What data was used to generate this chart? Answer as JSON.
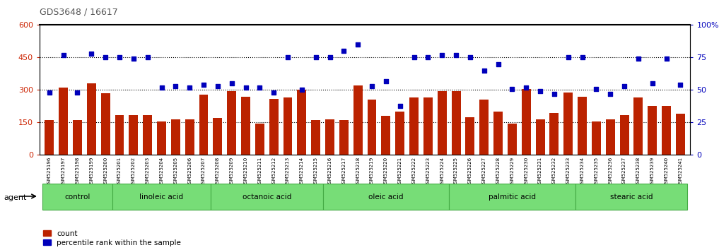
{
  "title": "GDS3648 / 16617",
  "samples": [
    "GSM525196",
    "GSM525197",
    "GSM525198",
    "GSM525199",
    "GSM525200",
    "GSM525201",
    "GSM525202",
    "GSM525203",
    "GSM525204",
    "GSM525205",
    "GSM525206",
    "GSM525207",
    "GSM525208",
    "GSM525209",
    "GSM525210",
    "GSM525211",
    "GSM525212",
    "GSM525213",
    "GSM525214",
    "GSM525215",
    "GSM525216",
    "GSM525217",
    "GSM525218",
    "GSM525219",
    "GSM525220",
    "GSM525221",
    "GSM525222",
    "GSM525223",
    "GSM525224",
    "GSM525225",
    "GSM525226",
    "GSM525227",
    "GSM525228",
    "GSM525229",
    "GSM525230",
    "GSM525231",
    "GSM525232",
    "GSM525233",
    "GSM525234",
    "GSM525235",
    "GSM525236",
    "GSM525237",
    "GSM525238",
    "GSM525239",
    "GSM525240",
    "GSM525241"
  ],
  "bar_values": [
    160,
    310,
    160,
    330,
    285,
    185,
    185,
    185,
    155,
    165,
    165,
    280,
    170,
    295,
    270,
    145,
    260,
    265,
    300,
    160,
    165,
    160,
    320,
    255,
    180,
    200,
    265,
    265,
    295,
    295,
    175,
    255,
    200,
    145,
    305,
    165,
    195,
    290,
    270,
    155,
    165,
    185,
    265,
    225,
    225,
    190
  ],
  "dot_values_pct": [
    48,
    77,
    48,
    78,
    75,
    75,
    74,
    75,
    52,
    53,
    52,
    54,
    53,
    55,
    52,
    52,
    48,
    75,
    50,
    75,
    75,
    80,
    85,
    53,
    57,
    38,
    75,
    75,
    77,
    77,
    75,
    65,
    70,
    51,
    52,
    49,
    47,
    75,
    75,
    51,
    47,
    53,
    74,
    55,
    74,
    54
  ],
  "groups": [
    {
      "label": "control",
      "start": 0,
      "end": 4
    },
    {
      "label": "linoleic acid",
      "start": 5,
      "end": 11
    },
    {
      "label": "octanoic acid",
      "start": 12,
      "end": 19
    },
    {
      "label": "oleic acid",
      "start": 20,
      "end": 28
    },
    {
      "label": "palmitic acid",
      "start": 29,
      "end": 37
    },
    {
      "label": "stearic acid",
      "start": 38,
      "end": 45
    }
  ],
  "bar_color": "#BB2200",
  "dot_color": "#0000BB",
  "group_fill_color": "#77DD77",
  "group_edge_color": "#44AA44",
  "xtick_bg_color": "#DDDDDD",
  "ylim_left": [
    0,
    600
  ],
  "ylim_right": [
    0,
    100
  ],
  "yticks_left": [
    0,
    150,
    300,
    450,
    600
  ],
  "yticks_right": [
    0,
    25,
    50,
    75,
    100
  ],
  "ytick_labels_right": [
    "0",
    "25",
    "50",
    "75",
    "100%"
  ],
  "agent_label": "agent",
  "legend_count_label": "count",
  "legend_pct_label": "percentile rank within the sample",
  "axis_left_color": "#CC2200",
  "axis_right_color": "#0000BB",
  "title_color": "#555555"
}
